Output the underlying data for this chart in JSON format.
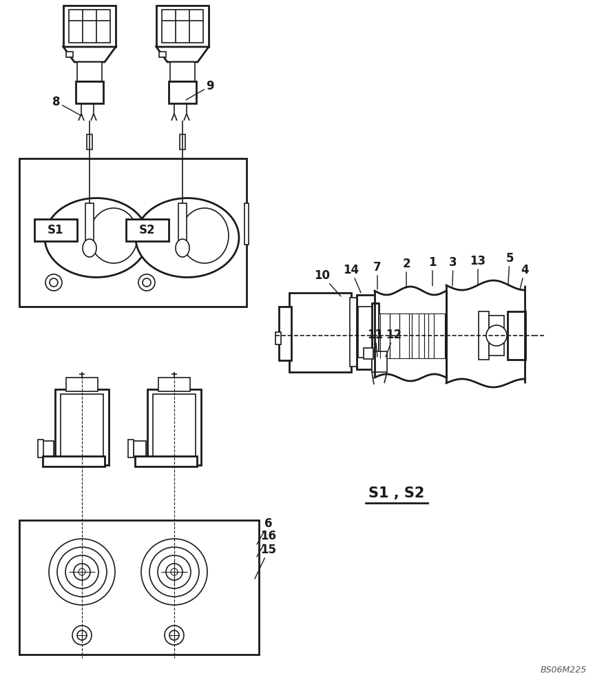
{
  "bg_color": "#ffffff",
  "line_color": "#1a1a1a",
  "label_color": "#000000",
  "watermark": "BS06M225",
  "label_s1s2": "S1 , S2",
  "figsize": [
    8.64,
    10.0
  ],
  "dpi": 100
}
